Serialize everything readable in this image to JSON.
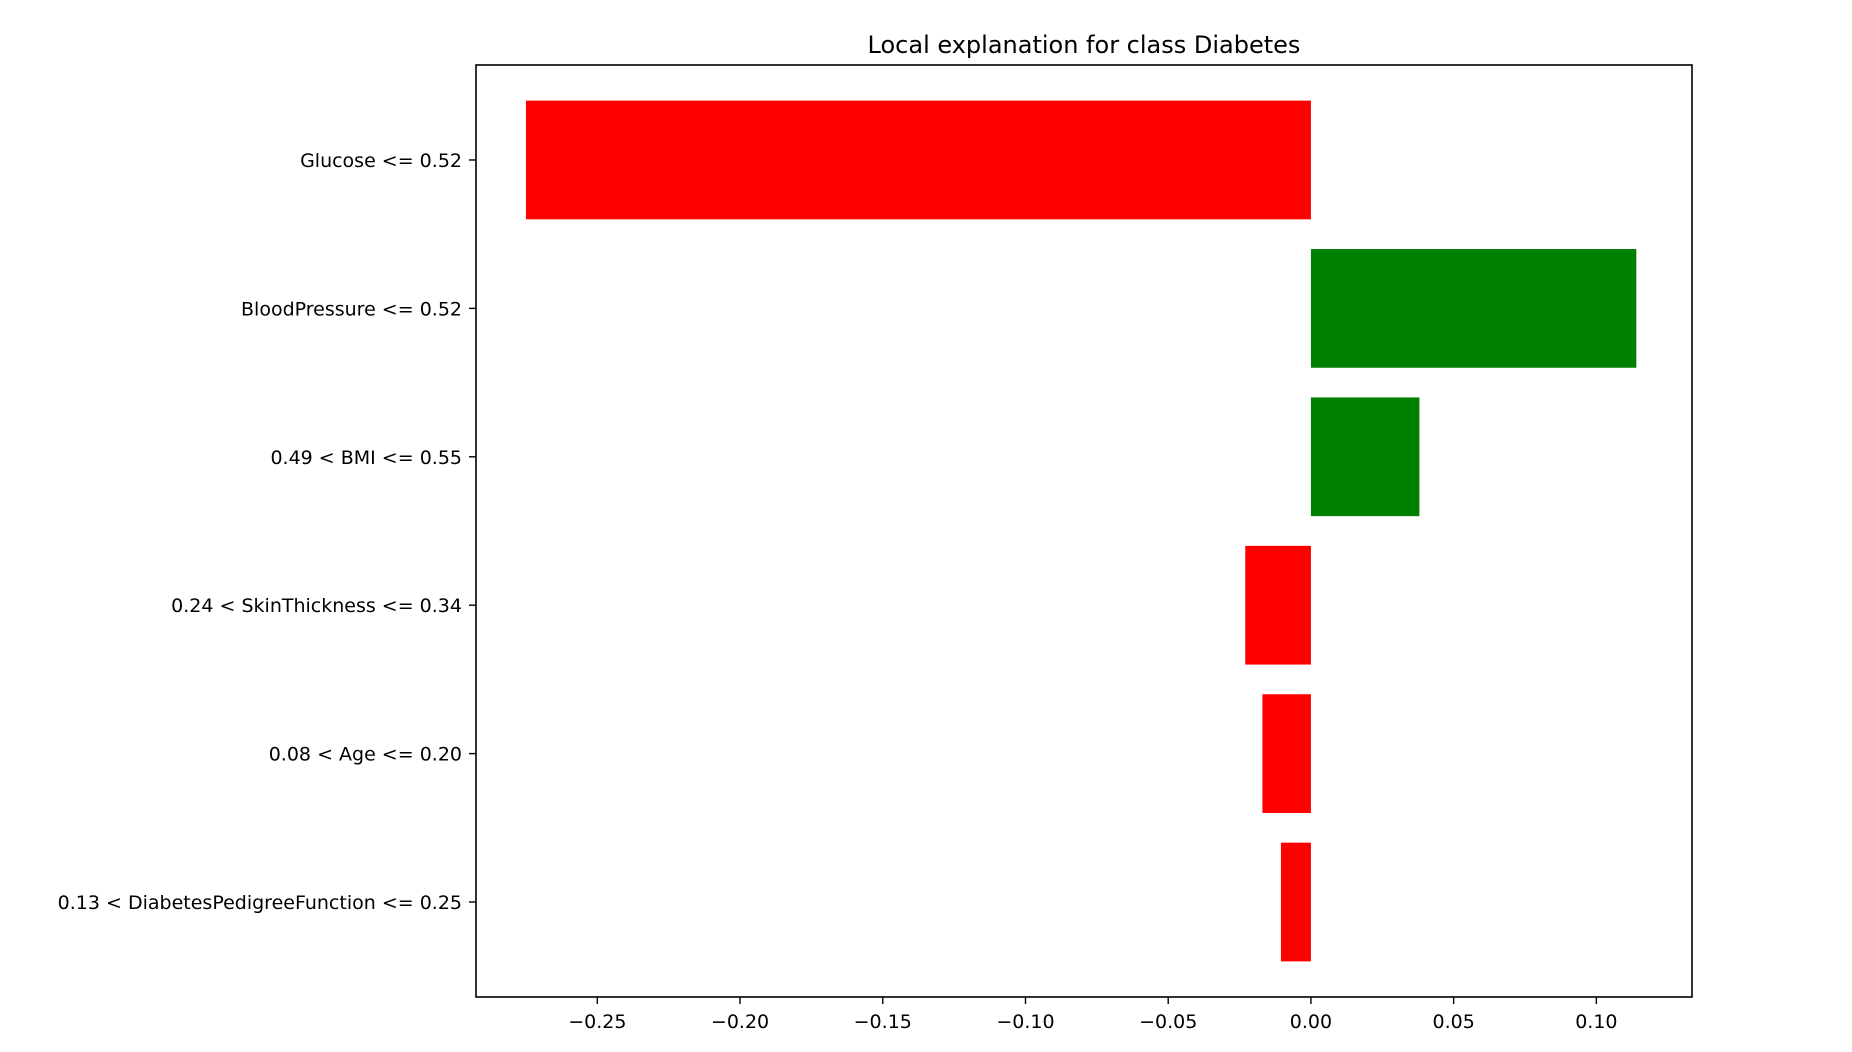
{
  "chart_data": {
    "type": "bar",
    "orientation": "horizontal",
    "title": "Local explanation for class Diabetes",
    "xlabel": "",
    "ylabel": "",
    "categories": [
      "Glucose <= 0.52",
      "BloodPressure <= 0.52",
      "0.49 < BMI <= 0.55",
      "0.24 < SkinThickness <= 0.34",
      "0.08 < Age <= 0.20",
      "0.13 < DiabetesPedigreeFunction <= 0.25"
    ],
    "values": [
      -0.275,
      0.114,
      0.038,
      -0.023,
      -0.017,
      -0.0105
    ],
    "colors": {
      "positive": "#008000",
      "negative": "#ff0000"
    },
    "xlim": [
      -0.2925,
      0.1335
    ],
    "xticks": [
      -0.25,
      -0.2,
      -0.15,
      -0.1,
      -0.05,
      0.0,
      0.05,
      0.1
    ],
    "xtick_labels": [
      "−0.25",
      "−0.20",
      "−0.15",
      "−0.10",
      "−0.05",
      "0.00",
      "0.05",
      "0.10"
    ],
    "grid": false,
    "legend": "none"
  }
}
